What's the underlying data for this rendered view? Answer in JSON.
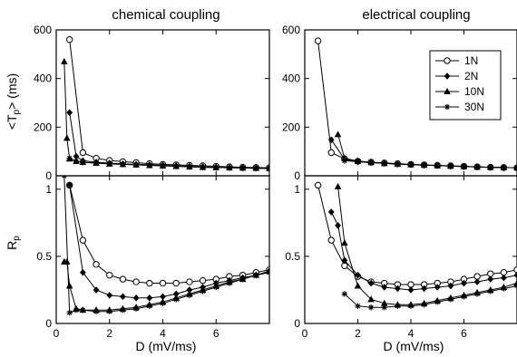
{
  "figure": {
    "panel_titles": [
      "chemical coupling",
      "electrical coupling"
    ],
    "xlabel": "D (mV/ms)",
    "ylabel_top": "<T",
    "ylabel_top_sub": "p",
    "ylabel_top_end": ">  (ms)",
    "ylabel_bottom": "R",
    "ylabel_bottom_sub": "p"
  },
  "chart_data": [
    {
      "type": "line",
      "panel": "chemical coupling",
      "title": "chemical coupling",
      "xlabel": "",
      "ylabel": "<Tp>  (ms)",
      "xlim": [
        0,
        8
      ],
      "ylim": [
        0,
        600
      ],
      "yticks": [
        0,
        200,
        400,
        600
      ],
      "xticks": [
        0,
        2,
        4,
        6
      ],
      "series": [
        {
          "name": "1N",
          "marker": "circle",
          "x": [
            0.5,
            1,
            1.5,
            2,
            2.5,
            3,
            3.5,
            4,
            4.5,
            5,
            5.5,
            6,
            6.5,
            7,
            7.5,
            8
          ],
          "y": [
            560,
            95,
            72,
            63,
            58,
            54,
            50,
            47,
            45,
            43,
            41,
            39,
            37,
            35,
            34,
            33
          ]
        },
        {
          "name": "2N",
          "marker": "diamond",
          "x": [
            0.5,
            0.75,
            1,
            1.5,
            2,
            2.5,
            3,
            3.5,
            4,
            4.5,
            5,
            5.5,
            6,
            6.5,
            7,
            7.5,
            8
          ],
          "y": [
            260,
            80,
            62,
            56,
            52,
            49,
            47,
            45,
            43,
            41,
            39,
            37,
            35,
            34,
            33,
            32,
            31
          ]
        },
        {
          "name": "10N",
          "marker": "triangle",
          "x": [
            0.3,
            0.4,
            0.5,
            0.75,
            1,
            1.5,
            2,
            2.5,
            3,
            3.5,
            4,
            4.5,
            5,
            5.5,
            6,
            6.5,
            7,
            7.5,
            8
          ],
          "y": [
            470,
            155,
            70,
            60,
            56,
            52,
            49,
            47,
            45,
            43,
            41,
            39,
            37,
            35,
            34,
            33,
            32,
            31,
            30
          ]
        },
        {
          "name": "30N",
          "marker": "star",
          "x": [
            0.5,
            0.75,
            1,
            1.5,
            2,
            2.5,
            3,
            3.5,
            4,
            4.5,
            5,
            5.5,
            6,
            6.5,
            7,
            7.5,
            8
          ],
          "y": [
            72,
            60,
            55,
            52,
            49,
            47,
            45,
            43,
            41,
            39,
            37,
            35,
            34,
            33,
            32,
            31,
            30
          ]
        }
      ]
    },
    {
      "type": "line",
      "panel": "electrical coupling",
      "title": "electrical coupling",
      "xlabel": "",
      "ylabel": "",
      "xlim": [
        0,
        8
      ],
      "ylim": [
        0,
        600
      ],
      "yticks": [
        0,
        200,
        400,
        600
      ],
      "xticks": [
        0,
        2,
        4,
        6
      ],
      "legend": "top-right",
      "series": [
        {
          "name": "1N",
          "marker": "circle",
          "x": [
            0.5,
            1,
            1.5,
            2,
            2.5,
            3,
            3.5,
            4,
            4.5,
            5,
            5.5,
            6,
            6.5,
            7,
            7.5,
            8
          ],
          "y": [
            555,
            95,
            70,
            60,
            56,
            53,
            50,
            47,
            45,
            43,
            41,
            39,
            37,
            35,
            34,
            33
          ]
        },
        {
          "name": "2N",
          "marker": "diamond",
          "x": [
            1,
            1.5,
            2,
            2.5,
            3,
            3.5,
            4,
            4.5,
            5,
            5.5,
            6,
            6.5,
            7,
            7.5,
            8
          ],
          "y": [
            148,
            68,
            58,
            54,
            51,
            48,
            46,
            44,
            42,
            40,
            38,
            36,
            35,
            34,
            33
          ]
        },
        {
          "name": "10N",
          "marker": "triangle",
          "x": [
            1.25,
            1.5,
            2,
            2.5,
            3,
            3.5,
            4,
            4.5,
            5,
            5.5,
            6,
            6.5,
            7,
            7.5,
            8
          ],
          "y": [
            170,
            72,
            60,
            55,
            51,
            48,
            46,
            44,
            42,
            40,
            38,
            36,
            35,
            34,
            33
          ]
        },
        {
          "name": "30N",
          "marker": "star",
          "x": [
            1.5,
            2,
            2.5,
            3,
            3.5,
            4,
            4.5,
            5,
            5.5,
            6,
            6.5,
            7,
            7.5,
            8
          ],
          "y": [
            62,
            58,
            54,
            51,
            48,
            46,
            44,
            42,
            40,
            38,
            36,
            35,
            34,
            33
          ]
        }
      ]
    },
    {
      "type": "line",
      "panel": "chemical coupling",
      "xlabel": "D (mV/ms)",
      "ylabel": "Rp",
      "xlim": [
        0,
        8
      ],
      "ylim": [
        0,
        1.1
      ],
      "yticks": [
        0,
        0.5,
        1
      ],
      "xticks": [
        0,
        2,
        4,
        6
      ],
      "series": [
        {
          "name": "1N",
          "marker": "circle",
          "x": [
            0.5,
            1,
            1.5,
            2,
            2.5,
            3,
            3.5,
            4,
            4.5,
            5,
            5.5,
            6,
            6.5,
            7,
            7.5,
            8
          ],
          "y": [
            1.03,
            0.62,
            0.44,
            0.36,
            0.33,
            0.31,
            0.3,
            0.3,
            0.3,
            0.31,
            0.32,
            0.33,
            0.35,
            0.36,
            0.38,
            0.4
          ]
        },
        {
          "name": "2N",
          "marker": "diamond",
          "x": [
            0.5,
            1,
            1.5,
            2,
            2.5,
            3,
            3.5,
            4,
            4.5,
            5,
            5.5,
            6,
            6.5,
            7,
            7.5,
            8
          ],
          "y": [
            1.03,
            0.38,
            0.25,
            0.21,
            0.2,
            0.19,
            0.19,
            0.2,
            0.22,
            0.25,
            0.27,
            0.3,
            0.32,
            0.34,
            0.36,
            0.39
          ]
        },
        {
          "name": "10N",
          "marker": "triangle",
          "x": [
            0.3,
            0.4,
            0.5,
            0.75,
            1,
            1.5,
            2,
            2.5,
            3,
            3.5,
            4,
            4.5,
            5,
            5.5,
            6,
            6.5,
            7,
            7.5,
            8
          ],
          "y": [
            0.46,
            0.46,
            0.28,
            0.11,
            0.1,
            0.1,
            0.1,
            0.11,
            0.12,
            0.14,
            0.16,
            0.19,
            0.22,
            0.25,
            0.28,
            0.31,
            0.33,
            0.36,
            0.39
          ]
        },
        {
          "name": "30N",
          "marker": "star",
          "x": [
            0.3,
            0.5,
            0.75,
            1,
            1.5,
            2,
            2.5,
            3,
            3.5,
            4,
            4.5,
            5,
            5.5,
            6,
            6.5,
            7,
            7.5,
            8
          ],
          "y": [
            1.1,
            0.08,
            0.1,
            0.1,
            0.09,
            0.09,
            0.1,
            0.11,
            0.13,
            0.15,
            0.18,
            0.21,
            0.24,
            0.27,
            0.3,
            0.33,
            0.36,
            0.38
          ]
        }
      ]
    },
    {
      "type": "line",
      "panel": "electrical coupling",
      "xlabel": "D (mV/ms)",
      "ylabel": "",
      "xlim": [
        0,
        8
      ],
      "ylim": [
        0,
        1.1
      ],
      "yticks": [
        0,
        0.5,
        1
      ],
      "xticks": [
        0,
        2,
        4,
        6
      ],
      "series": [
        {
          "name": "1N",
          "marker": "circle",
          "x": [
            0.5,
            1,
            1.5,
            2,
            2.5,
            3,
            3.5,
            4,
            4.5,
            5,
            5.5,
            6,
            6.5,
            7,
            7.5,
            8
          ],
          "y": [
            1.03,
            0.62,
            0.43,
            0.35,
            0.31,
            0.3,
            0.29,
            0.29,
            0.29,
            0.3,
            0.31,
            0.33,
            0.35,
            0.37,
            0.38,
            0.4
          ]
        },
        {
          "name": "2N",
          "marker": "diamond",
          "x": [
            1,
            1.25,
            1.5,
            2,
            2.5,
            3,
            3.5,
            4,
            4.5,
            5,
            5.5,
            6,
            6.5,
            7,
            7.5,
            8
          ],
          "y": [
            0.83,
            0.73,
            0.47,
            0.36,
            0.3,
            0.27,
            0.26,
            0.25,
            0.26,
            0.27,
            0.28,
            0.3,
            0.31,
            0.33,
            0.34,
            0.36
          ]
        },
        {
          "name": "10N",
          "marker": "triangle",
          "x": [
            1.25,
            1.5,
            2,
            2.5,
            3,
            3.5,
            4,
            4.5,
            5,
            5.5,
            6,
            6.5,
            7,
            7.5,
            8
          ],
          "y": [
            1.02,
            0.6,
            0.28,
            0.18,
            0.15,
            0.14,
            0.14,
            0.15,
            0.17,
            0.19,
            0.21,
            0.23,
            0.25,
            0.27,
            0.3
          ]
        },
        {
          "name": "30N",
          "marker": "star",
          "x": [
            1.5,
            2,
            2.5,
            3,
            3.5,
            4,
            4.5,
            5,
            5.5,
            6,
            6.5,
            7,
            7.5,
            8
          ],
          "y": [
            0.22,
            0.13,
            0.12,
            0.12,
            0.13,
            0.13,
            0.14,
            0.16,
            0.18,
            0.2,
            0.22,
            0.24,
            0.26,
            0.28
          ]
        }
      ]
    }
  ]
}
